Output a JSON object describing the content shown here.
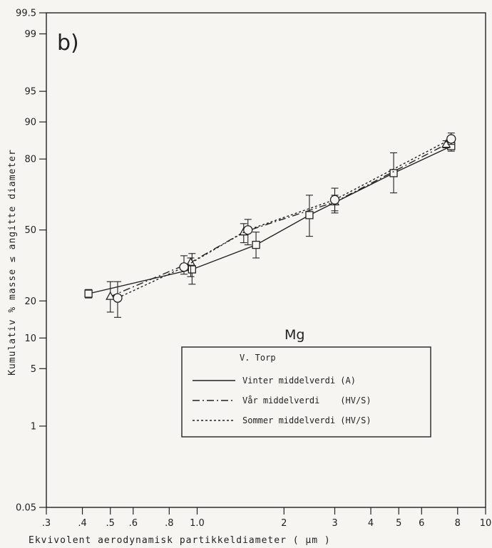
{
  "chart_data": {
    "type": "line",
    "panel_label": "b)",
    "element_label": "Mg",
    "xlabel": "Ekvivolent   aerodynamisk   partikkeldiameter ( μm )",
    "ylabel": "Kumulativ % masse ≤ angitte diameter",
    "x_scale": "log",
    "y_scale": "probability",
    "xlim": [
      0.3,
      10
    ],
    "ylim": [
      0.05,
      99.5
    ],
    "x_ticks": [
      {
        "value": 0.3,
        "label": ".3"
      },
      {
        "value": 0.4,
        "label": ".4"
      },
      {
        "value": 0.5,
        "label": ".5"
      },
      {
        "value": 0.6,
        "label": ".6"
      },
      {
        "value": 0.8,
        "label": ".8"
      },
      {
        "value": 1.0,
        "label": "1.0"
      },
      {
        "value": 2,
        "label": "2"
      },
      {
        "value": 3,
        "label": "3"
      },
      {
        "value": 4,
        "label": "4"
      },
      {
        "value": 5,
        "label": "5"
      },
      {
        "value": 6,
        "label": "6"
      },
      {
        "value": 8,
        "label": "8"
      },
      {
        "value": 10,
        "label": "10"
      }
    ],
    "y_ticks": [
      {
        "value": 0.05,
        "label": "0.05"
      },
      {
        "value": 1,
        "label": "1"
      },
      {
        "value": 5,
        "label": "5"
      },
      {
        "value": 10,
        "label": "10"
      },
      {
        "value": 20,
        "label": "20"
      },
      {
        "value": 50,
        "label": "50"
      },
      {
        "value": 80,
        "label": "80"
      },
      {
        "value": 90,
        "label": "90"
      },
      {
        "value": 95,
        "label": "95"
      },
      {
        "value": 99,
        "label": "99"
      },
      {
        "value": 99.5,
        "label": "99.5"
      }
    ],
    "legend": {
      "title": "V. Torp",
      "position": "center-bottom",
      "entries": [
        {
          "name": "Vinter middelverdi (A)",
          "style": "solid"
        },
        {
          "name": "Vår middelverdi    (HV/S)",
          "style": "dashdot"
        },
        {
          "name": "Sommer middelverdi (HV/S)",
          "style": "dotted"
        }
      ]
    },
    "series": [
      {
        "name": "Vinter middelverdi (A)",
        "style": "solid",
        "marker": "square",
        "points": [
          {
            "x": 0.42,
            "y": 22.5,
            "lo": 21.0,
            "hi": 24.0
          },
          {
            "x": 0.96,
            "y": 32.0,
            "lo": 26.0,
            "hi": 39.0
          },
          {
            "x": 1.6,
            "y": 43.0,
            "lo": 37.0,
            "hi": 49.0
          },
          {
            "x": 2.45,
            "y": 57.0,
            "lo": 47.0,
            "hi": 66.0
          },
          {
            "x": 4.8,
            "y": 75.0,
            "lo": 67.0,
            "hi": 82.0
          },
          {
            "x": 7.6,
            "y": 84.0,
            "lo": 82.5,
            "hi": 85.5
          }
        ]
      },
      {
        "name": "Vår middelverdi    (HV/S)",
        "style": "dashdot",
        "marker": "triangle",
        "points": [
          {
            "x": 0.5,
            "y": 21.5,
            "lo": 16.5,
            "hi": 27.0
          },
          {
            "x": 0.95,
            "y": 35.0,
            "lo": 29.0,
            "hi": 37.0
          },
          {
            "x": 1.45,
            "y": 49.0,
            "lo": 44.0,
            "hi": 53.0
          },
          {
            "x": 3.0,
            "y": 63.0,
            "lo": 58.0,
            "hi": 66.0
          },
          {
            "x": 7.3,
            "y": 84.5,
            "lo": 83.5,
            "hi": 85.5
          }
        ]
      },
      {
        "name": "Sommer middelverdi (HV/S)",
        "style": "dotted",
        "marker": "circle",
        "points": [
          {
            "x": 0.53,
            "y": 21.0,
            "lo": 15.0,
            "hi": 27.0
          },
          {
            "x": 0.9,
            "y": 33.0,
            "lo": 30.0,
            "hi": 38.0
          },
          {
            "x": 1.5,
            "y": 50.0,
            "lo": 43.0,
            "hi": 55.0
          },
          {
            "x": 3.0,
            "y": 64.0,
            "lo": 59.0,
            "hi": 69.0
          },
          {
            "x": 7.6,
            "y": 86.0,
            "lo": 84.5,
            "hi": 87.5
          }
        ]
      }
    ],
    "grid": false
  }
}
